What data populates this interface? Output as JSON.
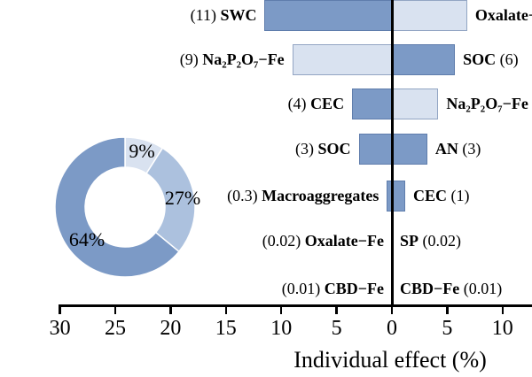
{
  "colors": {
    "dark": "#7C9AC6",
    "medium": "#ACC1DE",
    "light": "#D9E2F0",
    "axis": "#000000"
  },
  "chart_data": {
    "type": "diverging-bar",
    "xlabel": "Individual effect (%)",
    "x_axis": {
      "ticks": [
        {
          "label": "30",
          "pos": -30
        },
        {
          "label": "25",
          "pos": -25
        },
        {
          "label": "20",
          "pos": -20
        },
        {
          "label": "15",
          "pos": -15
        },
        {
          "label": "10",
          "pos": -10
        },
        {
          "label": "5",
          "pos": -5
        },
        {
          "label": "0",
          "pos": 0
        },
        {
          "label": "5",
          "pos": 5
        },
        {
          "label": "10",
          "pos": 10
        }
      ]
    },
    "rows": [
      {
        "left": {
          "num": "(11)",
          "name": "SWC",
          "value": 11,
          "bar": 11.5,
          "shade": "dark"
        },
        "right": {
          "name": "Oxalate−Fe",
          "num": "",
          "bar": 6.8,
          "shade": "light"
        }
      },
      {
        "left": {
          "num": "(9)",
          "name": "Na₂P₂O₇−Fe",
          "value": 9,
          "bar": 9.0,
          "shade": "light"
        },
        "right": {
          "name": "SOC",
          "num": "(6)",
          "value": 6,
          "bar": 5.7,
          "shade": "dark"
        }
      },
      {
        "left": {
          "num": "(4)",
          "name": "CEC",
          "value": 4,
          "bar": 3.6,
          "shade": "dark"
        },
        "right": {
          "name": "Na₂P₂O₇−Fe",
          "num": "",
          "bar": 4.2,
          "shade": "light"
        }
      },
      {
        "left": {
          "num": "(3)",
          "name": "SOC",
          "value": 3,
          "bar": 3.0,
          "shade": "dark"
        },
        "right": {
          "name": "AN",
          "num": "(3)",
          "value": 3,
          "bar": 3.2,
          "shade": "dark"
        }
      },
      {
        "left": {
          "num": "(0.3)",
          "name": "Macroaggregates",
          "value": 0.3,
          "bar": 0.45,
          "shade": "dark"
        },
        "right": {
          "name": "CEC",
          "num": "(1)",
          "value": 1,
          "bar": 1.2,
          "shade": "dark"
        }
      },
      {
        "left": {
          "num": "(0.02)",
          "name": "Oxalate−Fe",
          "value": 0.02,
          "bar": 0,
          "shade": "dark"
        },
        "right": {
          "name": "SP",
          "num": "(0.02)",
          "value": 0.02,
          "bar": 0,
          "shade": "dark"
        }
      },
      {
        "left": {
          "num": "(0.01)",
          "name": "CBD−Fe",
          "value": 0.01,
          "bar": 0,
          "shade": "dark"
        },
        "right": {
          "name": "CBD−Fe",
          "num": "(0.01)",
          "value": 0.01,
          "bar": 0,
          "shade": "dark"
        }
      }
    ],
    "donut": {
      "type": "pie",
      "segments": [
        {
          "label": "9%",
          "value": 9,
          "shade": "light"
        },
        {
          "label": "27%",
          "value": 27,
          "shade": "medium"
        },
        {
          "label": "64%",
          "value": 64,
          "shade": "dark"
        }
      ]
    }
  }
}
